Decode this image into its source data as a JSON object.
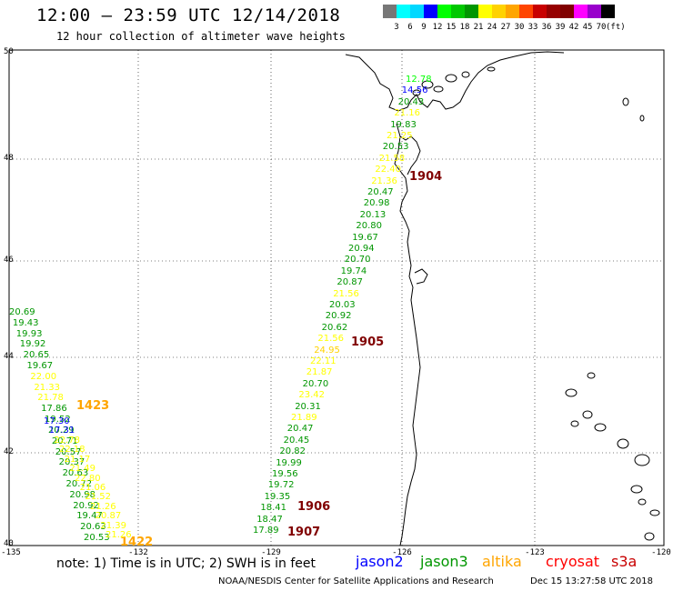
{
  "header": {
    "title": "12:00 – 23:59 UTC 12/14/2018",
    "subtitle": "12 hour collection of altimeter wave heights"
  },
  "legend": {
    "colors": [
      "#777777",
      "#00ffff",
      "#00d8ff",
      "#0000ff",
      "#00ff00",
      "#00c800",
      "#009600",
      "#ffff00",
      "#ffd200",
      "#ffa500",
      "#ff4500",
      "#c80000",
      "#960000",
      "#800000",
      "#ff00ff",
      "#9900cc",
      "#000000"
    ],
    "labels": [
      "3",
      "6",
      "9",
      "12",
      "15",
      "18",
      "21",
      "24",
      "27",
      "30",
      "33",
      "36",
      "39",
      "42",
      "45",
      "70"
    ],
    "unit": "(ft)"
  },
  "axes": {
    "lat_ticks": [
      "50",
      "48",
      "46",
      "44",
      "42",
      "40"
    ],
    "lon_ticks": [
      "-135",
      "-132",
      "-129",
      "-126",
      "-123",
      "-120"
    ]
  },
  "footer": {
    "note": "note:  1) Time is in UTC;  2) SWH is in feet",
    "satellites": [
      {
        "name": "jason2",
        "color": "#0000ff"
      },
      {
        "name": "jason3",
        "color": "#009600"
      },
      {
        "name": "altika",
        "color": "#ffa500"
      },
      {
        "name": "cryosat",
        "color": "#ff0000"
      },
      {
        "name": "s3a",
        "color": "#c80000"
      }
    ],
    "credit": "NOAA/NESDIS Center for Satellite Applications and Research",
    "timestamp": "Dec 15 13:27:58 UTC 2018"
  },
  "passes": [
    {
      "label": "1904",
      "color": "#800000"
    },
    {
      "label": "1905",
      "color": "#800000"
    },
    {
      "label": "1906",
      "color": "#800000"
    },
    {
      "label": "1907",
      "color": "#800000"
    },
    {
      "label": "1423",
      "color": "#ffa500"
    },
    {
      "label": "1422",
      "color": "#ffa500"
    }
  ],
  "track_east": [
    {
      "v": "12.78",
      "c": "#00ff00"
    },
    {
      "v": "14.56",
      "c": "#0000ff"
    },
    {
      "v": "20.43",
      "c": "#009600"
    },
    {
      "v": "21.16",
      "c": "#ffff00"
    },
    {
      "v": "19.83",
      "c": "#009600"
    },
    {
      "v": "21.25",
      "c": "#ffff00"
    },
    {
      "v": "20.53",
      "c": "#009600"
    },
    {
      "v": "21.58",
      "c": "#ffff00"
    },
    {
      "v": "22.40",
      "c": "#ffff00"
    },
    {
      "v": "21.36",
      "c": "#ffff00"
    },
    {
      "v": "20.47",
      "c": "#009600"
    },
    {
      "v": "20.98",
      "c": "#009600"
    },
    {
      "v": "20.13",
      "c": "#009600"
    },
    {
      "v": "20.80",
      "c": "#009600"
    },
    {
      "v": "19.67",
      "c": "#009600"
    },
    {
      "v": "20.94",
      "c": "#009600"
    },
    {
      "v": "20.70",
      "c": "#009600"
    },
    {
      "v": "19.74",
      "c": "#009600"
    },
    {
      "v": "20.87",
      "c": "#009600"
    },
    {
      "v": "21.56",
      "c": "#ffff00"
    },
    {
      "v": "20.03",
      "c": "#009600"
    },
    {
      "v": "20.92",
      "c": "#009600"
    },
    {
      "v": "20.62",
      "c": "#009600"
    },
    {
      "v": "21.56",
      "c": "#ffff00"
    },
    {
      "v": "24.95",
      "c": "#ffd200"
    },
    {
      "v": "22.11",
      "c": "#ffff00"
    },
    {
      "v": "21.87",
      "c": "#ffff00"
    },
    {
      "v": "20.70",
      "c": "#009600"
    },
    {
      "v": "23.42",
      "c": "#ffff00"
    },
    {
      "v": "20.31",
      "c": "#009600"
    },
    {
      "v": "21.89",
      "c": "#ffff00"
    },
    {
      "v": "20.47",
      "c": "#009600"
    },
    {
      "v": "20.45",
      "c": "#009600"
    },
    {
      "v": "20.82",
      "c": "#009600"
    },
    {
      "v": "19.99",
      "c": "#009600"
    },
    {
      "v": "19.56",
      "c": "#009600"
    },
    {
      "v": "19.72",
      "c": "#009600"
    },
    {
      "v": "19.35",
      "c": "#009600"
    },
    {
      "v": "18.41",
      "c": "#009600"
    },
    {
      "v": "18.47",
      "c": "#009600"
    },
    {
      "v": "17.89",
      "c": "#009600"
    }
  ],
  "track_west": [
    {
      "v": "20.69",
      "c": "#009600"
    },
    {
      "v": "19.43",
      "c": "#009600"
    },
    {
      "v": "19.93",
      "c": "#009600"
    },
    {
      "v": "19.92",
      "c": "#009600"
    },
    {
      "v": "20.65",
      "c": "#009600"
    },
    {
      "v": "19.67",
      "c": "#009600"
    },
    {
      "v": "22.00",
      "c": "#ffff00"
    },
    {
      "v": "21.33",
      "c": "#ffff00"
    },
    {
      "v": "21.78",
      "c": "#ffff00"
    },
    {
      "v": "17.86",
      "c": "#009600"
    },
    {
      "v": "19.52",
      "c": "#009600"
    },
    {
      "v": "20.29",
      "c": "#009600"
    },
    {
      "v": "20.71",
      "c": "#009600"
    },
    {
      "v": "20.57",
      "c": "#009600"
    },
    {
      "v": "20.37",
      "c": "#009600"
    },
    {
      "v": "20.63",
      "c": "#009600"
    },
    {
      "v": "20.72",
      "c": "#009600"
    },
    {
      "v": "20.98",
      "c": "#009600"
    },
    {
      "v": "20.92",
      "c": "#009600"
    },
    {
      "v": "19.47",
      "c": "#009600"
    },
    {
      "v": "20.63",
      "c": "#009600"
    },
    {
      "v": "20.53",
      "c": "#009600"
    }
  ],
  "track_altika": [
    {
      "v": "17.30",
      "c": "#0000ff"
    },
    {
      "v": "17.31",
      "c": "#0000ff"
    },
    {
      "v": "22.78",
      "c": "#ffff00"
    },
    {
      "v": "22.18",
      "c": "#ffff00"
    },
    {
      "v": "21.17",
      "c": "#ffff00"
    },
    {
      "v": "21.49",
      "c": "#ffff00"
    },
    {
      "v": "22.80",
      "c": "#ffff00"
    },
    {
      "v": "21.06",
      "c": "#ffff00"
    },
    {
      "v": "21.52",
      "c": "#ffff00"
    },
    {
      "v": "21.26",
      "c": "#ffff00"
    },
    {
      "v": "20.87",
      "c": "#ffff00"
    },
    {
      "v": "21.39",
      "c": "#ffff00"
    },
    {
      "v": "21.26",
      "c": "#ffff00"
    }
  ]
}
